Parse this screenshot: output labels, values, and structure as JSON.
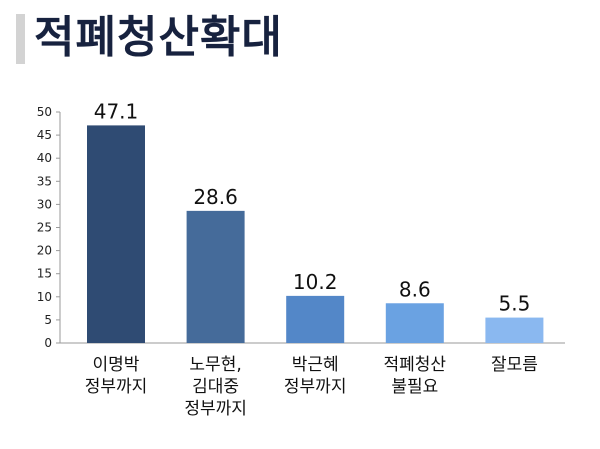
{
  "title": "적폐청산확대",
  "chart_data": {
    "type": "bar",
    "title": "적폐청산확대",
    "xlabel": "",
    "ylabel": "",
    "ylim": [
      0,
      50
    ],
    "yticks": [
      0,
      5,
      10,
      15,
      20,
      25,
      30,
      35,
      40,
      45,
      50
    ],
    "grid": false,
    "categories": [
      [
        "이명박",
        "정부까지"
      ],
      [
        "노무현,",
        "김대중",
        "정부까지"
      ],
      [
        "박근혜",
        "정부까지"
      ],
      [
        "적폐청산",
        "불필요"
      ],
      [
        "잘모름"
      ]
    ],
    "values": [
      47.1,
      28.6,
      10.2,
      8.6,
      5.5
    ],
    "value_labels": [
      "47.1",
      "28.6",
      "10.2",
      "8.6",
      "5.5"
    ],
    "bar_colors": [
      "#2f4b73",
      "#456b9a",
      "#5387c8",
      "#6aa2e2",
      "#8ab8f0"
    ]
  }
}
